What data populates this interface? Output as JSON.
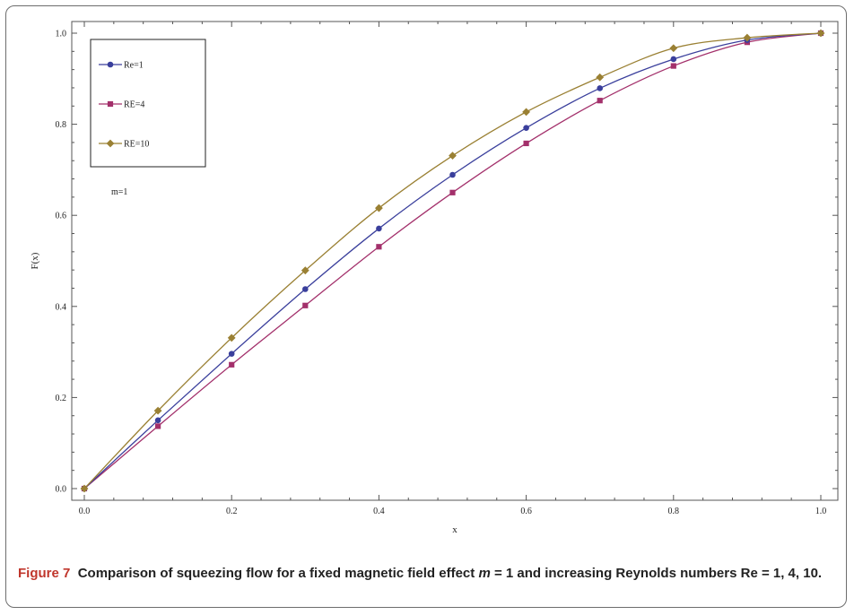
{
  "chart_data": {
    "type": "line",
    "title": "",
    "xlabel": "x",
    "ylabel": "F(x)",
    "xlim": [
      0.0,
      1.0
    ],
    "ylim": [
      0.0,
      1.0
    ],
    "x_ticks": [
      "0.0",
      "0.2",
      "0.4",
      "0.6",
      "0.8",
      "1.0"
    ],
    "y_ticks": [
      "0.0",
      "0.2",
      "0.4",
      "0.6",
      "0.8",
      "1.0"
    ],
    "x": [
      0.0,
      0.1,
      0.2,
      0.3,
      0.4,
      0.5,
      0.6,
      0.7,
      0.8,
      0.9,
      1.0
    ],
    "series": [
      {
        "name": "Re=1",
        "color": "#3a3f9c",
        "marker": "circle",
        "values": [
          0.0,
          0.15,
          0.296,
          0.438,
          0.571,
          0.689,
          0.792,
          0.879,
          0.943,
          0.985,
          1.0
        ]
      },
      {
        "name": "RE=4",
        "color": "#a3306b",
        "marker": "square",
        "values": [
          0.0,
          0.137,
          0.272,
          0.402,
          0.531,
          0.65,
          0.758,
          0.852,
          0.928,
          0.98,
          1.0
        ]
      },
      {
        "name": "RE=10",
        "color": "#9a8033",
        "marker": "diamond",
        "values": [
          0.0,
          0.171,
          0.331,
          0.479,
          0.616,
          0.731,
          0.827,
          0.903,
          0.967,
          0.99,
          1.0
        ]
      }
    ],
    "legend_position": "top-left",
    "annotation": "m=1",
    "grid": false
  },
  "caption": {
    "figure_label": "Figure 7",
    "text_part1": "Comparison of squeezing flow for a fixed magnetic field effect ",
    "m_symbol": "m",
    "text_part2": " = 1 and increasing Reynolds numbers Re = 1, 4, 10."
  }
}
